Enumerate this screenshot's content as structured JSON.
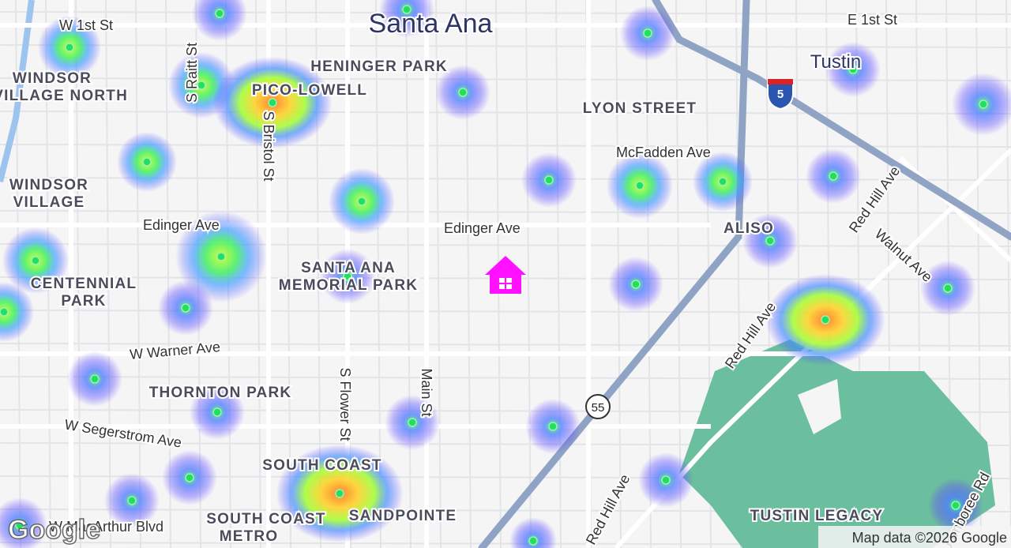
{
  "map": {
    "places": [
      [
        "Santa Ana"
      ],
      [
        "Tustin"
      ],
      [
        "HENINGER PARK"
      ],
      [
        "PICO-LOWELL"
      ],
      [
        "LYON STREET"
      ],
      [
        "WINDSOR",
        "VILLAGE NORTH"
      ],
      [
        "WINDSOR",
        "VILLAGE"
      ],
      [
        "CENTENNIAL",
        "PARK"
      ],
      [
        "SANTA ANA",
        "MEMORIAL PARK"
      ],
      [
        "ALISO"
      ],
      [
        "THORNTON PARK"
      ],
      [
        "SOUTH COAST"
      ],
      [
        "SOUTH COAST",
        "METRO"
      ],
      [
        "SANDPOINTE"
      ],
      [
        "TUSTIN LEGACY"
      ]
    ],
    "streets": [
      "W 1st St",
      "E 1st St",
      "S Raitt St",
      "S Bristol St",
      "McFadden Ave",
      "Edinger Ave",
      "Edinger Ave",
      "Red Hill Ave",
      "Walnut Ave",
      "Red Hill Ave",
      "W Warner Ave",
      "W Segerstrom Ave",
      "S Flower St",
      "Main St",
      "Red Hill Ave",
      "W MacArthur Blvd",
      "Jamboree Rd"
    ],
    "shields": [
      "5",
      "55"
    ],
    "logo": "Google",
    "attribution": "Map data ©2026 Google"
  }
}
